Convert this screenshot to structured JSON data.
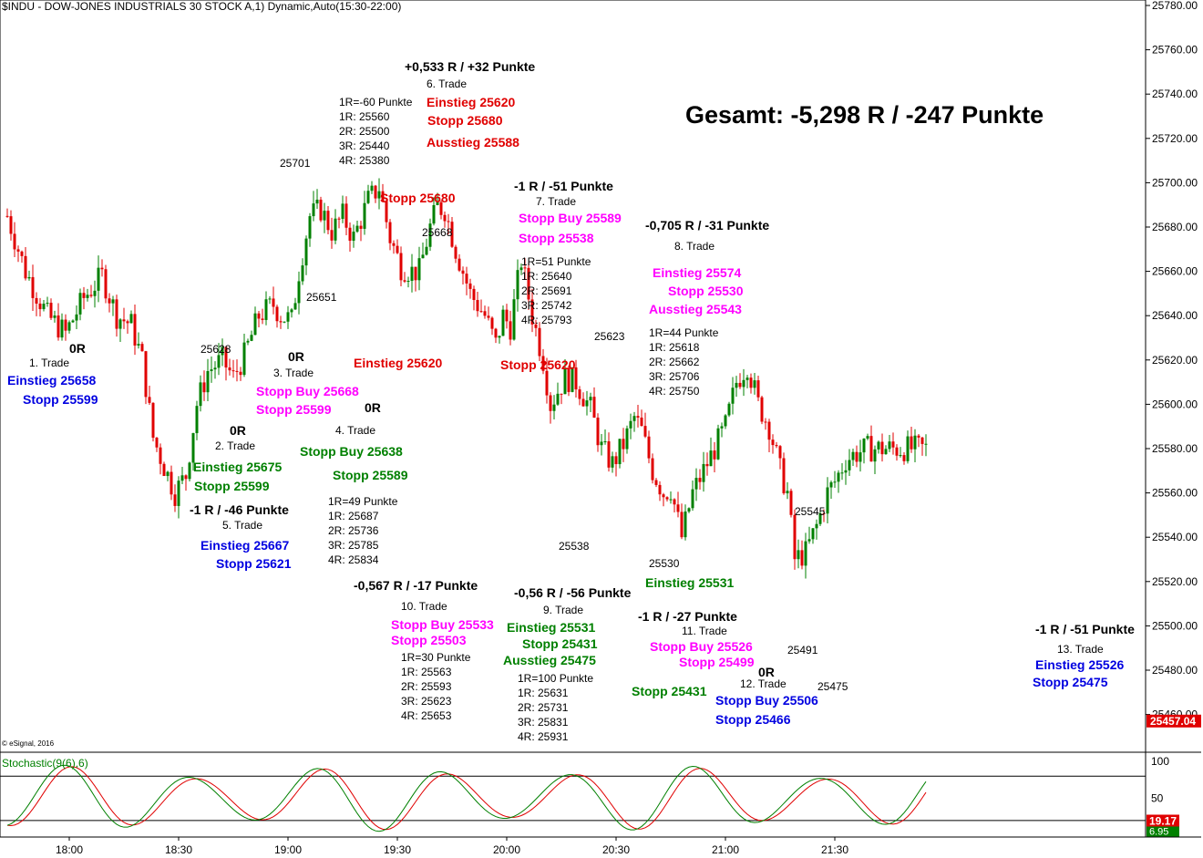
{
  "header": {
    "title": "$INDU - DOW-JONES INDUSTRIALS 30 STOCK A,1) Dynamic,Auto(15:30-22:00)"
  },
  "summary": {
    "total": "Gesamt: -5,298 R / -247 Punkte"
  },
  "copyright": "© eSignal, 2016",
  "colors": {
    "up": "#008000",
    "down": "#e00000",
    "stoch_k": "#008000",
    "stoch_d": "#e00000",
    "price_tag": "#e00000"
  },
  "chart_data": {
    "type": "candlestick",
    "price_axis": {
      "ylim": [
        25440,
        25780
      ],
      "ticks": [
        25460,
        25480,
        25500,
        25520,
        25540,
        25560,
        25580,
        25600,
        25620,
        25640,
        25660,
        25680,
        25700,
        25720,
        25740,
        25760,
        25780
      ],
      "tick_labels": [
        "25460.00",
        "25480.00",
        "25500.00",
        "25520.00",
        "25540.00",
        "25560.00",
        "25580.00",
        "25600.00",
        "25620.00",
        "25640.00",
        "25660.00",
        "25680.00",
        "25700.00",
        "25720.00",
        "25740.00",
        "25760.00",
        "25780.00"
      ],
      "last_price": "25457.04"
    },
    "time_axis": {
      "labels": [
        "18:00",
        "18:30",
        "19:00",
        "19:30",
        "20:00",
        "20:30",
        "21:00",
        "21:30"
      ],
      "label_minutes": [
        0,
        30,
        60,
        90,
        120,
        150,
        180,
        210
      ],
      "start_minute": -17,
      "end_minute": 223
    },
    "price_path": [
      [
        -17,
        25685
      ],
      [
        -12,
        25660
      ],
      [
        -6,
        25640
      ],
      [
        -1,
        25632
      ],
      [
        4,
        25648
      ],
      [
        9,
        25658
      ],
      [
        13,
        25640
      ],
      [
        17,
        25636
      ],
      [
        20,
        25620
      ],
      [
        23,
        25585
      ],
      [
        26,
        25572
      ],
      [
        29,
        25560
      ],
      [
        32,
        25568
      ],
      [
        35,
        25600
      ],
      [
        38,
        25615
      ],
      [
        42,
        25620
      ],
      [
        45,
        25612
      ],
      [
        48,
        25622
      ],
      [
        52,
        25640
      ],
      [
        56,
        25645
      ],
      [
        58,
        25640
      ],
      [
        61,
        25638
      ],
      [
        63,
        25660
      ],
      [
        66,
        25685
      ],
      [
        69,
        25688
      ],
      [
        72,
        25678
      ],
      [
        75,
        25685
      ],
      [
        78,
        25675
      ],
      [
        82,
        25692
      ],
      [
        85,
        25698
      ],
      [
        88,
        25675
      ],
      [
        91,
        25662
      ],
      [
        94,
        25660
      ],
      [
        96,
        25660
      ],
      [
        99,
        25680
      ],
      [
        101,
        25689
      ],
      [
        103,
        25688
      ],
      [
        106,
        25670
      ],
      [
        110,
        25650
      ],
      [
        114,
        25640
      ],
      [
        117,
        25627
      ],
      [
        119,
        25640
      ],
      [
        121,
        25635
      ],
      [
        124,
        25665
      ],
      [
        127,
        25640
      ],
      [
        130,
        25620
      ],
      [
        132,
        25600
      ],
      [
        136,
        25612
      ],
      [
        139,
        25610
      ],
      [
        143,
        25598
      ],
      [
        146,
        25580
      ],
      [
        149,
        25573
      ],
      [
        152,
        25582
      ],
      [
        155,
        25594
      ],
      [
        157,
        25588
      ],
      [
        160,
        25570
      ],
      [
        163,
        25560
      ],
      [
        165,
        25562
      ],
      [
        168,
        25540
      ],
      [
        171,
        25560
      ],
      [
        174,
        25570
      ],
      [
        177,
        25580
      ],
      [
        180,
        25590
      ],
      [
        183,
        25610
      ],
      [
        186,
        25618
      ],
      [
        189,
        25600
      ],
      [
        192,
        25590
      ],
      [
        195,
        25570
      ],
      [
        197,
        25560
      ],
      [
        199,
        25530
      ],
      [
        202,
        25533
      ],
      [
        205,
        25545
      ],
      [
        208,
        25560
      ],
      [
        210,
        25565
      ],
      [
        213,
        25575
      ],
      [
        216,
        25578
      ],
      [
        219,
        25580
      ],
      [
        222,
        25580
      ]
    ],
    "price_path_note": "",
    "stochastic": {
      "name": "Stochastic(9(6),6)",
      "ylim": [
        0,
        110
      ],
      "levels": [
        80,
        20
      ],
      "ticks": [
        50,
        100
      ],
      "k_last": "6.95",
      "d_last": "19.17"
    }
  },
  "annotations": [
    {
      "text": "25701",
      "style": "norm12"
    },
    {
      "text": "25651",
      "style": "norm12"
    },
    {
      "text": "25628",
      "style": "norm12"
    },
    {
      "text": "25668",
      "style": "norm12"
    },
    {
      "text": "25623",
      "style": "norm12"
    },
    {
      "text": "25538",
      "style": "norm12"
    },
    {
      "text": "25530",
      "style": "norm12"
    },
    {
      "text": "25545",
      "style": "norm12"
    },
    {
      "text": "25491",
      "style": "norm12"
    },
    {
      "text": "25475",
      "style": "norm12"
    },
    {
      "text": "+0,533 R / +32 Punkte",
      "style": "bold13"
    },
    {
      "text": "6. Trade",
      "style": "norm12"
    },
    {
      "text": "Einstieg 25620",
      "style": "c-red"
    },
    {
      "text": "Stopp 25680",
      "style": "c-red"
    },
    {
      "text": "Ausstieg 25588",
      "style": "c-red"
    },
    {
      "text": "Stopp 25680",
      "style": "c-red"
    },
    {
      "text": "Einstieg 25620",
      "style": "c-red"
    },
    {
      "text": "Stopp 25620",
      "style": "c-red"
    },
    {
      "text": "0R",
      "style": "bold13"
    },
    {
      "text": "1. Trade",
      "style": "norm12"
    },
    {
      "text": "Einstieg 25658",
      "style": "c-blue"
    },
    {
      "text": "Stopp 25599",
      "style": "c-blue"
    },
    {
      "text": "0R",
      "style": "bold13"
    },
    {
      "text": "2. Trade",
      "style": "norm12"
    },
    {
      "text": "Einstieg 25675",
      "style": "c-green"
    },
    {
      "text": "Stopp 25599",
      "style": "c-green"
    },
    {
      "text": "-1 R / -46 Punkte",
      "style": "bold13"
    },
    {
      "text": "5. Trade",
      "style": "norm12"
    },
    {
      "text": "Einstieg 25667",
      "style": "c-blue"
    },
    {
      "text": "Stopp 25621",
      "style": "c-blue"
    },
    {
      "text": "0R",
      "style": "bold13"
    },
    {
      "text": "3. Trade",
      "style": "norm12"
    },
    {
      "text": "Stopp Buy 25668",
      "style": "c-mag"
    },
    {
      "text": "Stopp 25599",
      "style": "c-mag"
    },
    {
      "text": "0R",
      "style": "bold13"
    },
    {
      "text": "4. Trade",
      "style": "norm12"
    },
    {
      "text": "Stopp Buy 25638",
      "style": "c-green"
    },
    {
      "text": "Stopp 25589",
      "style": "c-green"
    },
    {
      "text": "-1 R / -51 Punkte",
      "style": "bold13"
    },
    {
      "text": "7. Trade",
      "style": "norm12"
    },
    {
      "text": "Stopp Buy 25589",
      "style": "c-mag"
    },
    {
      "text": "Stopp 25538",
      "style": "c-mag"
    },
    {
      "text": "-0,705 R / -31 Punkte",
      "style": "bold13"
    },
    {
      "text": "8. Trade",
      "style": "norm12"
    },
    {
      "text": "Einstieg 25574",
      "style": "c-mag"
    },
    {
      "text": "Stopp 25530",
      "style": "c-mag"
    },
    {
      "text": "Ausstieg 25543",
      "style": "c-mag"
    },
    {
      "text": "Einstieg 25531",
      "style": "c-green"
    },
    {
      "text": "-0,567 R / -17 Punkte",
      "style": "bold13"
    },
    {
      "text": "10. Trade",
      "style": "norm12"
    },
    {
      "text": "Stopp Buy 25533",
      "style": "c-mag"
    },
    {
      "text": "Stopp 25503",
      "style": "c-mag"
    },
    {
      "text": "-0,56 R / -56 Punkte",
      "style": "bold13"
    },
    {
      "text": "9. Trade",
      "style": "norm12"
    },
    {
      "text": "Einstieg 25531",
      "style": "c-green"
    },
    {
      "text": "Stopp 25431",
      "style": "c-green"
    },
    {
      "text": "Ausstieg 25475",
      "style": "c-green"
    },
    {
      "text": "-1 R / -27 Punkte",
      "style": "bold13"
    },
    {
      "text": "11. Trade",
      "style": "norm12"
    },
    {
      "text": "Stopp Buy 25526",
      "style": "c-mag"
    },
    {
      "text": "Stopp 25499",
      "style": "c-mag"
    },
    {
      "text": "Stopp 25431",
      "style": "c-green"
    },
    {
      "text": "0R",
      "style": "bold13"
    },
    {
      "text": "12. Trade",
      "style": "norm12"
    },
    {
      "text": "Stopp Buy 25506",
      "style": "c-blue"
    },
    {
      "text": "Stopp 25466",
      "style": "c-blue"
    },
    {
      "text": "-1 R / -51 Punkte",
      "style": "bold13"
    },
    {
      "text": "13. Trade",
      "style": "norm12"
    },
    {
      "text": "Einstieg 25526",
      "style": "c-blue"
    },
    {
      "text": "Stopp 25475",
      "style": "c-blue"
    }
  ],
  "r_lists": [
    {
      "lines": [
        "1R=-60 Punkte",
        "1R: 25560",
        "2R: 25500",
        "3R: 25440",
        "4R: 25380"
      ]
    },
    {
      "lines": [
        "1R=51 Punkte",
        "1R: 25640",
        "2R: 25691",
        "3R: 25742",
        "4R: 25793"
      ]
    },
    {
      "lines": [
        "1R=44 Punkte",
        "1R: 25618",
        "2R: 25662",
        "3R: 25706",
        "4R: 25750"
      ]
    },
    {
      "lines": [
        "1R=49 Punkte",
        "1R: 25687",
        "2R: 25736",
        "3R: 25785",
        "4R: 25834"
      ]
    },
    {
      "lines": [
        "1R=30 Punkte",
        "1R: 25563",
        "2R: 25593",
        "3R: 25623",
        "4R: 25653"
      ]
    },
    {
      "lines": [
        "1R=100 Punkte",
        "1R: 25631",
        "2R: 25731",
        "3R: 25831",
        "4R: 25931"
      ]
    }
  ]
}
